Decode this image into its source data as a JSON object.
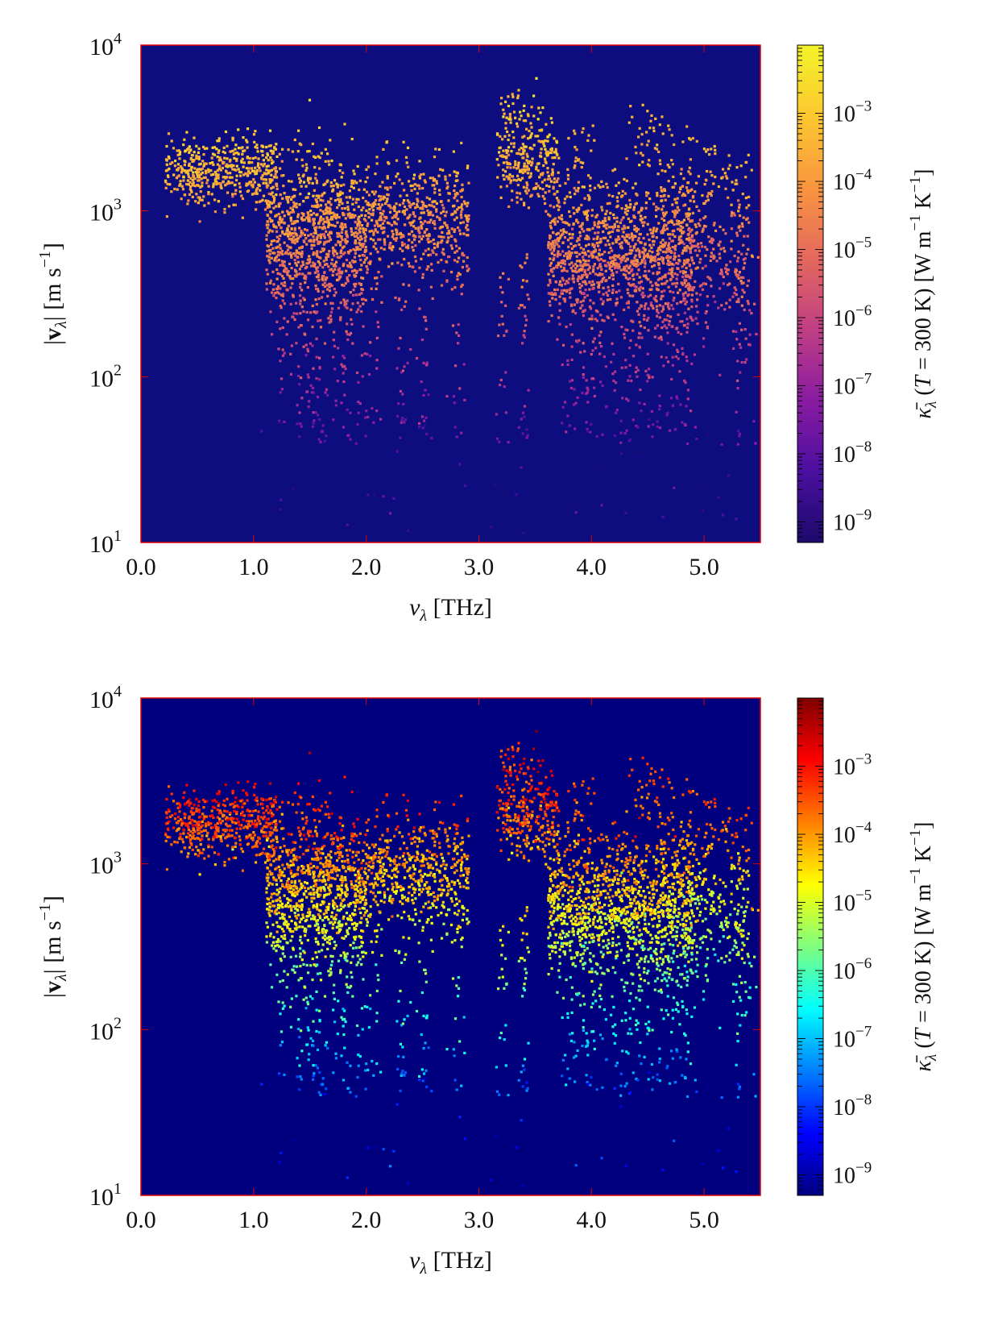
{
  "chart_data": [
    {
      "type": "heatmap",
      "title": "",
      "x_label": "ν_λ [THz]",
      "x_label_parts": {
        "symbol": "ν",
        "sub": "λ",
        "unit": " [THz]"
      },
      "y_label": "|v_λ| [m s^-1]",
      "y_label_parts": {
        "bar": "|",
        "symbol": "v",
        "sub": "λ",
        "bar2": "|",
        "unit": " [m s",
        "sup": "−1",
        "close": "]"
      },
      "x_range": [
        0.0,
        5.5
      ],
      "x_ticks": [
        "0.0",
        "1.0",
        "2.0",
        "3.0",
        "4.0",
        "5.0"
      ],
      "x_tick_values": [
        0,
        1,
        2,
        3,
        4,
        5
      ],
      "y_scale": "log",
      "y_range": [
        10,
        10000
      ],
      "y_ticks": [
        {
          "base": "10",
          "exp": "1"
        },
        {
          "base": "10",
          "exp": "2"
        },
        {
          "base": "10",
          "exp": "3"
        },
        {
          "base": "10",
          "exp": "4"
        }
      ],
      "y_tick_values": [
        10,
        100,
        1000,
        10000
      ],
      "colorbar": {
        "label": "κ̄_λ (T = 300 K) [W m^-1 K^-1]",
        "label_parts": {
          "symbol": "κ̄",
          "sub": "λ",
          "mid1": " (",
          "T": "T",
          "mid2": " = 300 K) [W m",
          "sup1": "−1",
          "mid3": " K",
          "sup2": "−1",
          "close": "]"
        },
        "scale": "log",
        "range": [
          5e-10,
          0.01
        ],
        "ticks": [
          {
            "base": "10",
            "exp": "−9"
          },
          {
            "base": "10",
            "exp": "−8"
          },
          {
            "base": "10",
            "exp": "−7"
          },
          {
            "base": "10",
            "exp": "−6"
          },
          {
            "base": "10",
            "exp": "−5"
          },
          {
            "base": "10",
            "exp": "−4"
          },
          {
            "base": "10",
            "exp": "−3"
          }
        ],
        "tick_values": [
          -9,
          -8,
          -7,
          -6,
          -5,
          -4,
          -3
        ],
        "colormap": "plasma-like",
        "colormap_stops": [
          "#1c0a6b",
          "#4b0fa0",
          "#8a1ba1",
          "#c03f84",
          "#e4685e",
          "#f8953f",
          "#fcc72f",
          "#f3f32a"
        ]
      },
      "background_color": "#0d0d80",
      "frame_color": "#e00000"
    },
    {
      "type": "heatmap",
      "title": "",
      "x_label": "ν_λ [THz]",
      "x_label_parts": {
        "symbol": "ν",
        "sub": "λ",
        "unit": " [THz]"
      },
      "y_label": "|v_λ| [m s^-1]",
      "y_label_parts": {
        "bar": "|",
        "symbol": "v",
        "sub": "λ",
        "bar2": "|",
        "unit": " [m s",
        "sup": "−1",
        "close": "]"
      },
      "x_range": [
        0.0,
        5.5
      ],
      "x_ticks": [
        "0.0",
        "1.0",
        "2.0",
        "3.0",
        "4.0",
        "5.0"
      ],
      "x_tick_values": [
        0,
        1,
        2,
        3,
        4,
        5
      ],
      "y_scale": "log",
      "y_range": [
        10,
        10000
      ],
      "y_ticks": [
        {
          "base": "10",
          "exp": "1"
        },
        {
          "base": "10",
          "exp": "2"
        },
        {
          "base": "10",
          "exp": "3"
        },
        {
          "base": "10",
          "exp": "4"
        }
      ],
      "y_tick_values": [
        10,
        100,
        1000,
        10000
      ],
      "colorbar": {
        "label": "κ̄_λ (T = 300 K) [W m^-1 K^-1]",
        "label_parts": {
          "symbol": "κ̄",
          "sub": "λ",
          "mid1": " (",
          "T": "T",
          "mid2": " = 300 K) [W m",
          "sup1": "−1",
          "mid3": " K",
          "sup2": "−1",
          "close": "]"
        },
        "scale": "log",
        "range": [
          5e-10,
          0.01
        ],
        "ticks": [
          {
            "base": "10",
            "exp": "−9"
          },
          {
            "base": "10",
            "exp": "−8"
          },
          {
            "base": "10",
            "exp": "−7"
          },
          {
            "base": "10",
            "exp": "−6"
          },
          {
            "base": "10",
            "exp": "−5"
          },
          {
            "base": "10",
            "exp": "−4"
          },
          {
            "base": "10",
            "exp": "−3"
          }
        ],
        "tick_values": [
          -9,
          -8,
          -7,
          -6,
          -5,
          -4,
          -3
        ],
        "colormap": "jet",
        "colormap_stops": [
          "#00007f",
          "#0000ff",
          "#007fff",
          "#00ffff",
          "#7fff7f",
          "#ffff00",
          "#ff7f00",
          "#ff0000",
          "#7f0000"
        ]
      },
      "background_color": "#00007f",
      "frame_color": "#e00000"
    }
  ]
}
